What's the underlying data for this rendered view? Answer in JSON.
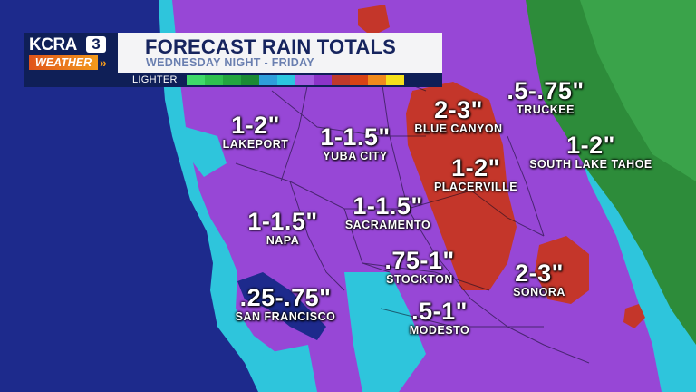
{
  "branding": {
    "station": "KCRA",
    "channel": "3",
    "segment": "WEATHER"
  },
  "header": {
    "title": "FORECAST RAIN TOTALS",
    "subtitle": "WEDNESDAY NIGHT - FRIDAY",
    "legend_label": "LIGHTER",
    "legend_colors": [
      "#3fd96a",
      "#2fc04f",
      "#23a53f",
      "#1a8a34",
      "#2e9edb",
      "#2bc6e0",
      "#a45be0",
      "#8c34c8",
      "#c0392b",
      "#d84315",
      "#f08a1c",
      "#f5e11b"
    ]
  },
  "colors": {
    "ocean": "#1d2a8c",
    "light_rain": "#2ec5dc",
    "moderate_rain": "#9747d6",
    "heavy_rain": "#c4362a",
    "sierra_green": "#2d8c3a"
  },
  "forecasts": [
    {
      "city": "LAKEPORT",
      "amount": "1-2\""
    },
    {
      "city": "YUBA CITY",
      "amount": "1-1.5\""
    },
    {
      "city": "BLUE CANYON",
      "amount": "2-3\""
    },
    {
      "city": "TRUCKEE",
      "amount": ".5-.75\""
    },
    {
      "city": "SOUTH LAKE TAHOE",
      "amount": "1-2\""
    },
    {
      "city": "PLACERVILLE",
      "amount": "1-2\""
    },
    {
      "city": "SACRAMENTO",
      "amount": "1-1.5\""
    },
    {
      "city": "NAPA",
      "amount": "1-1.5\""
    },
    {
      "city": "STOCKTON",
      "amount": ".75-1\""
    },
    {
      "city": "SONORA",
      "amount": "2-3\""
    },
    {
      "city": "SAN FRANCISCO",
      "amount": ".25-.75\""
    },
    {
      "city": "MODESTO",
      "amount": ".5-1\""
    }
  ]
}
